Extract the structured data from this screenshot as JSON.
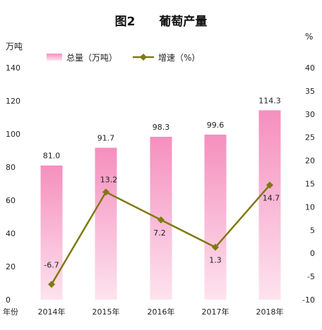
{
  "chart_data": {
    "type": "bar+line",
    "title": "图2　　葡萄产量",
    "categories": [
      "2014年",
      "2015年",
      "2016年",
      "2017年",
      "2018年"
    ],
    "x_axis_prefix": "年份",
    "left_axis": {
      "unit": "万吨",
      "ylim": [
        0,
        140
      ],
      "ticks": [
        0,
        20,
        40,
        60,
        80,
        100,
        120,
        140
      ]
    },
    "right_axis": {
      "unit": "%",
      "ylim": [
        -10,
        40
      ],
      "ticks": [
        -10,
        -5,
        0,
        5,
        10,
        15,
        20,
        25,
        30,
        35,
        40
      ]
    },
    "series": [
      {
        "name": "总量（万吨）",
        "type": "bar",
        "axis": "left",
        "values": [
          81.0,
          91.7,
          98.3,
          99.6,
          114.3
        ],
        "labels": [
          "81.0",
          "91.7",
          "98.3",
          "99.6",
          "114.3"
        ],
        "color_top": "#f58fbe",
        "color_bottom": "#fde3ee"
      },
      {
        "name": "增速（%）",
        "type": "line",
        "axis": "right",
        "values": [
          -6.7,
          13.2,
          7.2,
          1.3,
          14.7
        ],
        "labels": [
          "-6.7",
          "13.2",
          "7.2",
          "1.3",
          "14.7"
        ],
        "color": "#7f7a12"
      }
    ],
    "legend_position": "top",
    "grid": false
  }
}
